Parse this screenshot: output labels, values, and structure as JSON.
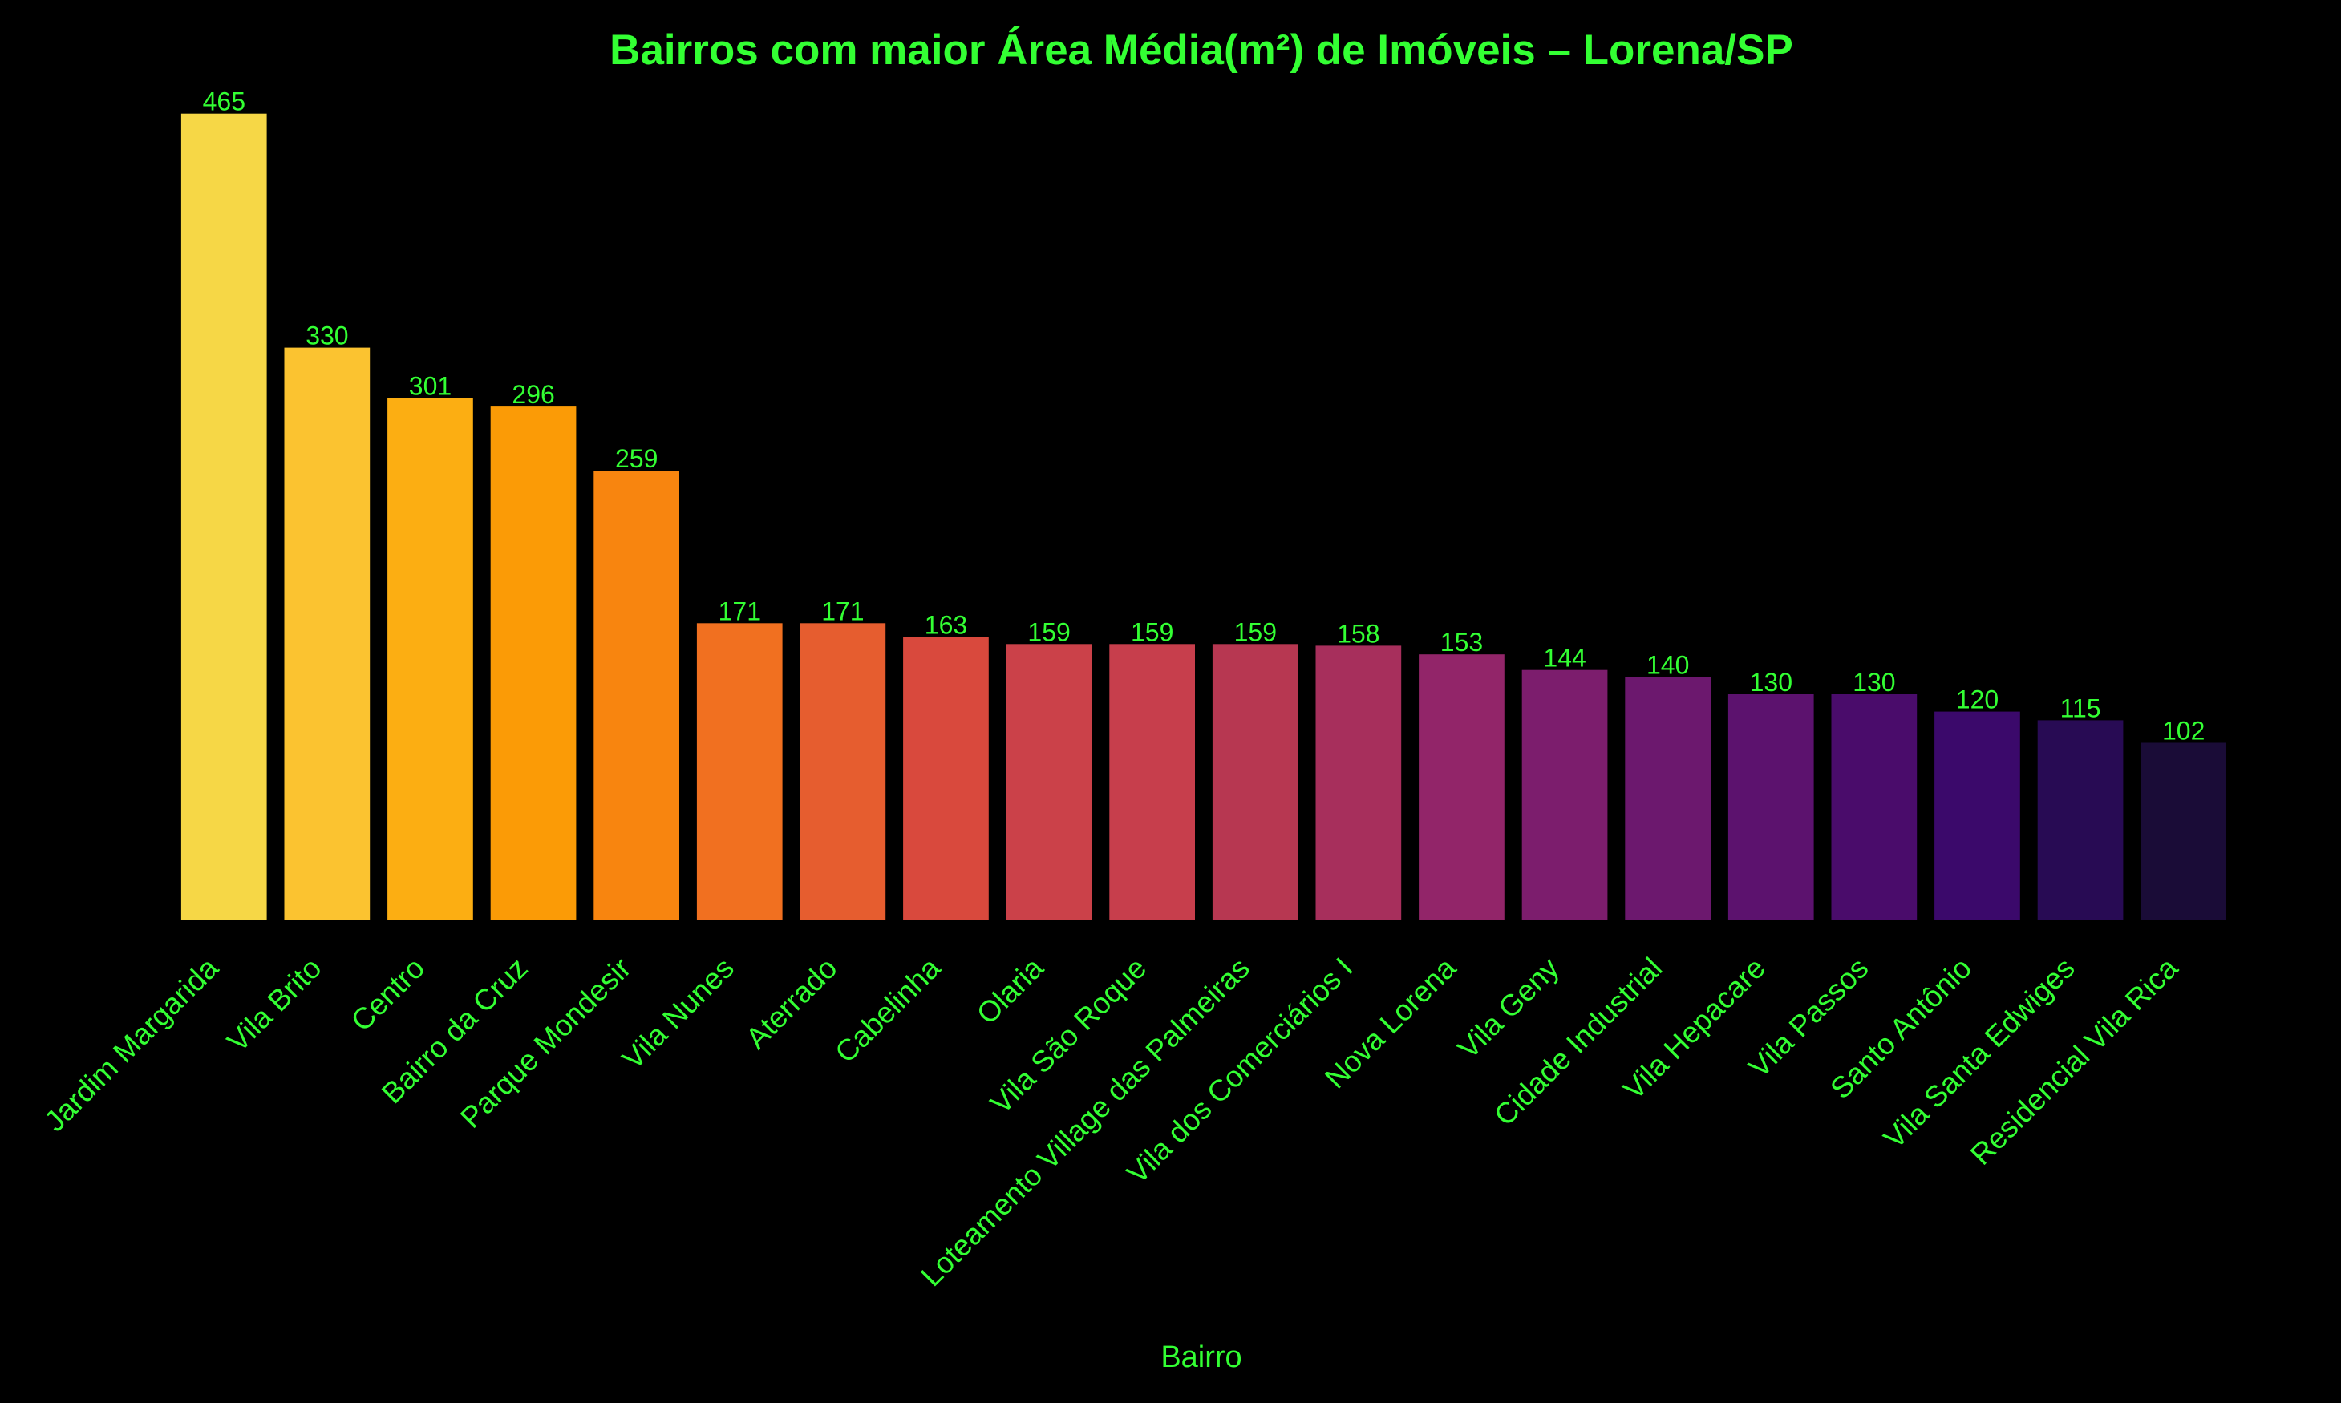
{
  "chart_data": {
    "type": "bar",
    "title": "Bairros com maior Área Média(m²) de Imóveis – Lorena/SP",
    "xlabel": "Bairro",
    "ylabel": "",
    "ylim": [
      0,
      488
    ],
    "grid": false,
    "categories": [
      "Jardim Margarida",
      "Vila Brito",
      "Centro",
      "Bairro da Cruz",
      "Parque Mondesir",
      "Vila Nunes",
      "Aterrado",
      "Cabelinha",
      "Olaria",
      "Vila São Roque",
      "Loteamento Village das Palmeiras",
      "Vila dos Comerciários I",
      "Nova Lorena",
      "Vila Geny",
      "Cidade Industrial",
      "Vila Hepacare",
      "Vila Passos",
      "Santo Antônio",
      "Vila Santa Edwiges",
      "Residencial Vila Rica"
    ],
    "values": [
      465,
      330,
      301,
      296,
      259,
      171,
      171,
      163,
      159,
      159,
      159,
      158,
      153,
      144,
      140,
      130,
      130,
      120,
      115,
      102
    ],
    "labels": [
      "465",
      "330",
      "301",
      "296",
      "259",
      "171",
      "171",
      "163",
      "159",
      "159",
      "159",
      "158",
      "153",
      "144",
      "140",
      "130",
      "130",
      "120",
      "115",
      "102"
    ],
    "colors": [
      "#f6d746",
      "#fbc330",
      "#fcae12",
      "#fb9b06",
      "#f8850f",
      "#f17020",
      "#e65d2f",
      "#d9493d",
      "#cb4149",
      "#c73e4c",
      "#b73751",
      "#a72f5c",
      "#922569",
      "#7c1d6d",
      "#6c186e",
      "#5c126e",
      "#4a0c6b",
      "#3b096b",
      "#280b54",
      "#1a0c37"
    ],
    "text_color": "#33ff33",
    "background": "#000000"
  }
}
